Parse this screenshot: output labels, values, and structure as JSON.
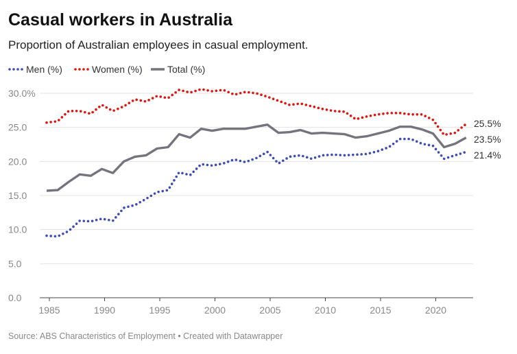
{
  "title": "Casual workers in Australia",
  "subtitle": "Proportion of Australian employees in casual employment.",
  "source": "Source: ABS Characteristics of Employment • Created with Datawrapper",
  "chart_data": {
    "type": "line",
    "title": "Casual workers in Australia",
    "subtitle": "Proportion of Australian employees in casual employment.",
    "xlabel": "",
    "ylabel": "",
    "ylim": [
      0,
      30
    ],
    "xlim": [
      1984,
      2022
    ],
    "grid": true,
    "legend": "top-left",
    "y_ticks": [
      "0.0",
      "5.0",
      "10.0",
      "15.0",
      "20.0",
      "25.0",
      "30.0%"
    ],
    "x_ticks": [
      "1985",
      "1990",
      "1995",
      "2000",
      "2005",
      "2010",
      "2015",
      "2020"
    ],
    "x": [
      1984,
      1985,
      1986,
      1987,
      1988,
      1989,
      1990,
      1991,
      1992,
      1993,
      1994,
      1995,
      1996,
      1997,
      1998,
      1999,
      2000,
      2001,
      2002,
      2003,
      2004,
      2005,
      2006,
      2007,
      2008,
      2009,
      2010,
      2011,
      2012,
      2013,
      2014,
      2015,
      2016,
      2017,
      2018,
      2019,
      2020,
      2021,
      2022
    ],
    "series": [
      {
        "name": "Men (%)",
        "color": "#3d4bb8",
        "style": "dotted",
        "end_label": "21.4%",
        "values": [
          9.1,
          9.0,
          9.8,
          11.3,
          11.2,
          11.6,
          11.3,
          13.2,
          13.6,
          14.5,
          15.5,
          15.8,
          18.4,
          18.0,
          19.6,
          19.4,
          19.7,
          20.3,
          19.9,
          20.5,
          21.4,
          19.7,
          20.7,
          20.9,
          20.4,
          20.9,
          21.0,
          20.9,
          21.0,
          21.1,
          21.5,
          22.1,
          23.3,
          23.3,
          22.6,
          22.3,
          20.4,
          20.9,
          21.4
        ]
      },
      {
        "name": "Women (%)",
        "color": "#e3120b",
        "style": "dotted",
        "end_label": "25.5%",
        "values": [
          25.7,
          25.9,
          27.4,
          27.4,
          27.0,
          28.3,
          27.4,
          28.1,
          29.1,
          28.8,
          29.6,
          29.3,
          30.5,
          30.1,
          30.6,
          30.3,
          30.5,
          29.8,
          30.2,
          30.0,
          29.5,
          28.9,
          28.3,
          28.5,
          28.1,
          27.7,
          27.4,
          27.3,
          26.2,
          26.6,
          26.9,
          27.1,
          27.1,
          26.9,
          26.9,
          26.1,
          23.9,
          24.2,
          25.5
        ]
      },
      {
        "name": "Total (%)",
        "color": "#76737f",
        "style": "solid",
        "end_label": "23.5%",
        "values": [
          15.7,
          15.8,
          17.0,
          18.1,
          17.9,
          18.9,
          18.3,
          20.0,
          20.7,
          20.9,
          21.9,
          22.1,
          24.0,
          23.5,
          24.8,
          24.5,
          24.8,
          24.8,
          24.8,
          25.1,
          25.4,
          24.2,
          24.3,
          24.6,
          24.1,
          24.2,
          24.1,
          24.0,
          23.5,
          23.7,
          24.1,
          24.5,
          25.1,
          25.1,
          24.7,
          24.1,
          22.1,
          22.6,
          23.5
        ]
      }
    ]
  }
}
